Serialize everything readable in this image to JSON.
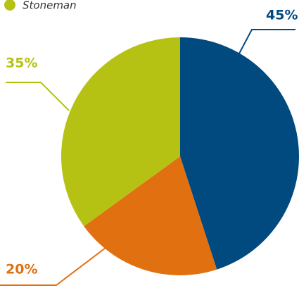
{
  "chart_data": {
    "type": "pie",
    "categories": [
      null,
      null,
      "Stoneman"
    ],
    "values": [
      45,
      20,
      35
    ],
    "value_labels": [
      "45%",
      "20%",
      "35%"
    ],
    "colors": [
      "#004a80",
      "#e07010",
      "#b5c214"
    ]
  }
}
